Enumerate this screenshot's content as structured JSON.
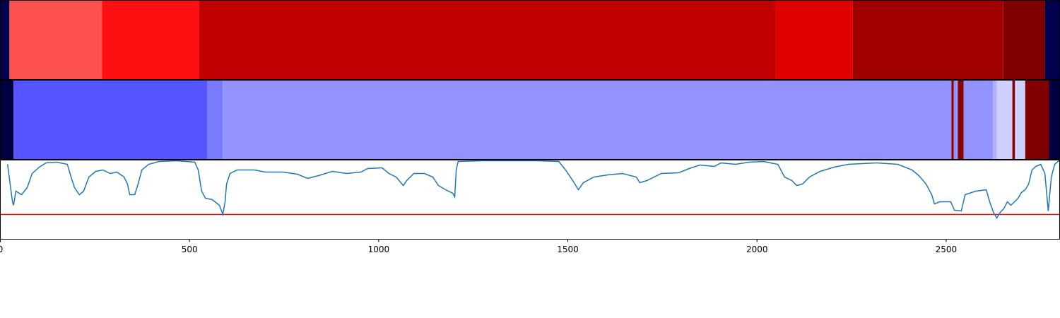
{
  "chart_data": [
    {
      "type": "strip",
      "xlim": [
        0,
        2800
      ],
      "edges": [
        0,
        24,
        269,
        525,
        2049,
        2253,
        2651,
        2761,
        2800
      ],
      "colors": [
        "#000050",
        "#ff5050",
        "#ff1010",
        "#c00000",
        "#e00000",
        "#a00000",
        "#800000",
        "#000050"
      ]
    },
    {
      "type": "strip",
      "xlim": [
        0,
        2800
      ],
      "edges": [
        0,
        35,
        547,
        588,
        2514,
        2520,
        2531,
        2546,
        2624,
        2634,
        2675,
        2682,
        2709,
        2772,
        2800
      ],
      "colors": [
        "#000040",
        "#5555ff",
        "#7a7aff",
        "#9393ff",
        "#8b0000",
        "#9393ff",
        "#8b0000",
        "#9393ff",
        "#b0b0ff",
        "#d0d0ff",
        "#8b0000",
        "#d0d0ff",
        "#800000",
        "#000040"
      ]
    },
    {
      "type": "line",
      "xlim": [
        0,
        2800
      ],
      "ylim": [
        0,
        112
      ],
      "xticks": [
        0,
        500,
        1000,
        1500,
        2000,
        2500
      ],
      "color": "#1f77b4",
      "threshold": 35,
      "threshold_color": "#ff0000",
      "x": [
        19,
        26,
        32,
        35,
        41,
        56,
        71,
        84,
        103,
        121,
        149,
        177,
        187,
        196,
        209,
        220,
        234,
        252,
        271,
        290,
        308,
        327,
        336,
        342,
        355,
        364,
        374,
        392,
        420,
        467,
        514,
        523,
        532,
        542,
        560,
        579,
        588,
        594,
        598,
        607,
        626,
        672,
        700,
        747,
        785,
        812,
        841,
        878,
        915,
        953,
        971,
        1009,
        1027,
        1046,
        1065,
        1074,
        1093,
        1121,
        1143,
        1158,
        1177,
        1196,
        1201,
        1205,
        1210,
        1270,
        1345,
        1420,
        1476,
        1494,
        1513,
        1528,
        1541,
        1569,
        1606,
        1644,
        1681,
        1690,
        1709,
        1747,
        1793,
        1821,
        1849,
        1887,
        1905,
        1943,
        1980,
        2017,
        2055,
        2073,
        2092,
        2105,
        2120,
        2139,
        2167,
        2204,
        2242,
        2316,
        2372,
        2410,
        2428,
        2447,
        2462,
        2469,
        2484,
        2512,
        2522,
        2540,
        2550,
        2578,
        2606,
        2615,
        2625,
        2634,
        2643,
        2652,
        2662,
        2671,
        2681,
        2690,
        2699,
        2709,
        2718,
        2727,
        2737,
        2750,
        2761,
        2770,
        2778,
        2787,
        2800
      ],
      "values": [
        106,
        78,
        53,
        48,
        68,
        63,
        73,
        93,
        102,
        108,
        109,
        106,
        88,
        73,
        63,
        68,
        88,
        96,
        98,
        93,
        95,
        88,
        78,
        63,
        63,
        78,
        98,
        106,
        110,
        111,
        109,
        98,
        68,
        58,
        56,
        48,
        35,
        53,
        78,
        93,
        98,
        98,
        95,
        95,
        92,
        86,
        90,
        96,
        93,
        95,
        100,
        101,
        93,
        88,
        76,
        83,
        93,
        93,
        88,
        76,
        70,
        65,
        60,
        98,
        110,
        111,
        111,
        111,
        110,
        98,
        83,
        70,
        80,
        88,
        91,
        93,
        88,
        80,
        83,
        93,
        94,
        100,
        105,
        103,
        108,
        106,
        109,
        110,
        106,
        88,
        83,
        76,
        78,
        88,
        96,
        102,
        106,
        108,
        106,
        98,
        90,
        78,
        63,
        50,
        53,
        53,
        41,
        40,
        63,
        68,
        70,
        53,
        38,
        30,
        38,
        43,
        53,
        48,
        53,
        58,
        66,
        70,
        78,
        98,
        103,
        106,
        93,
        40,
        88,
        106,
        112
      ]
    }
  ]
}
